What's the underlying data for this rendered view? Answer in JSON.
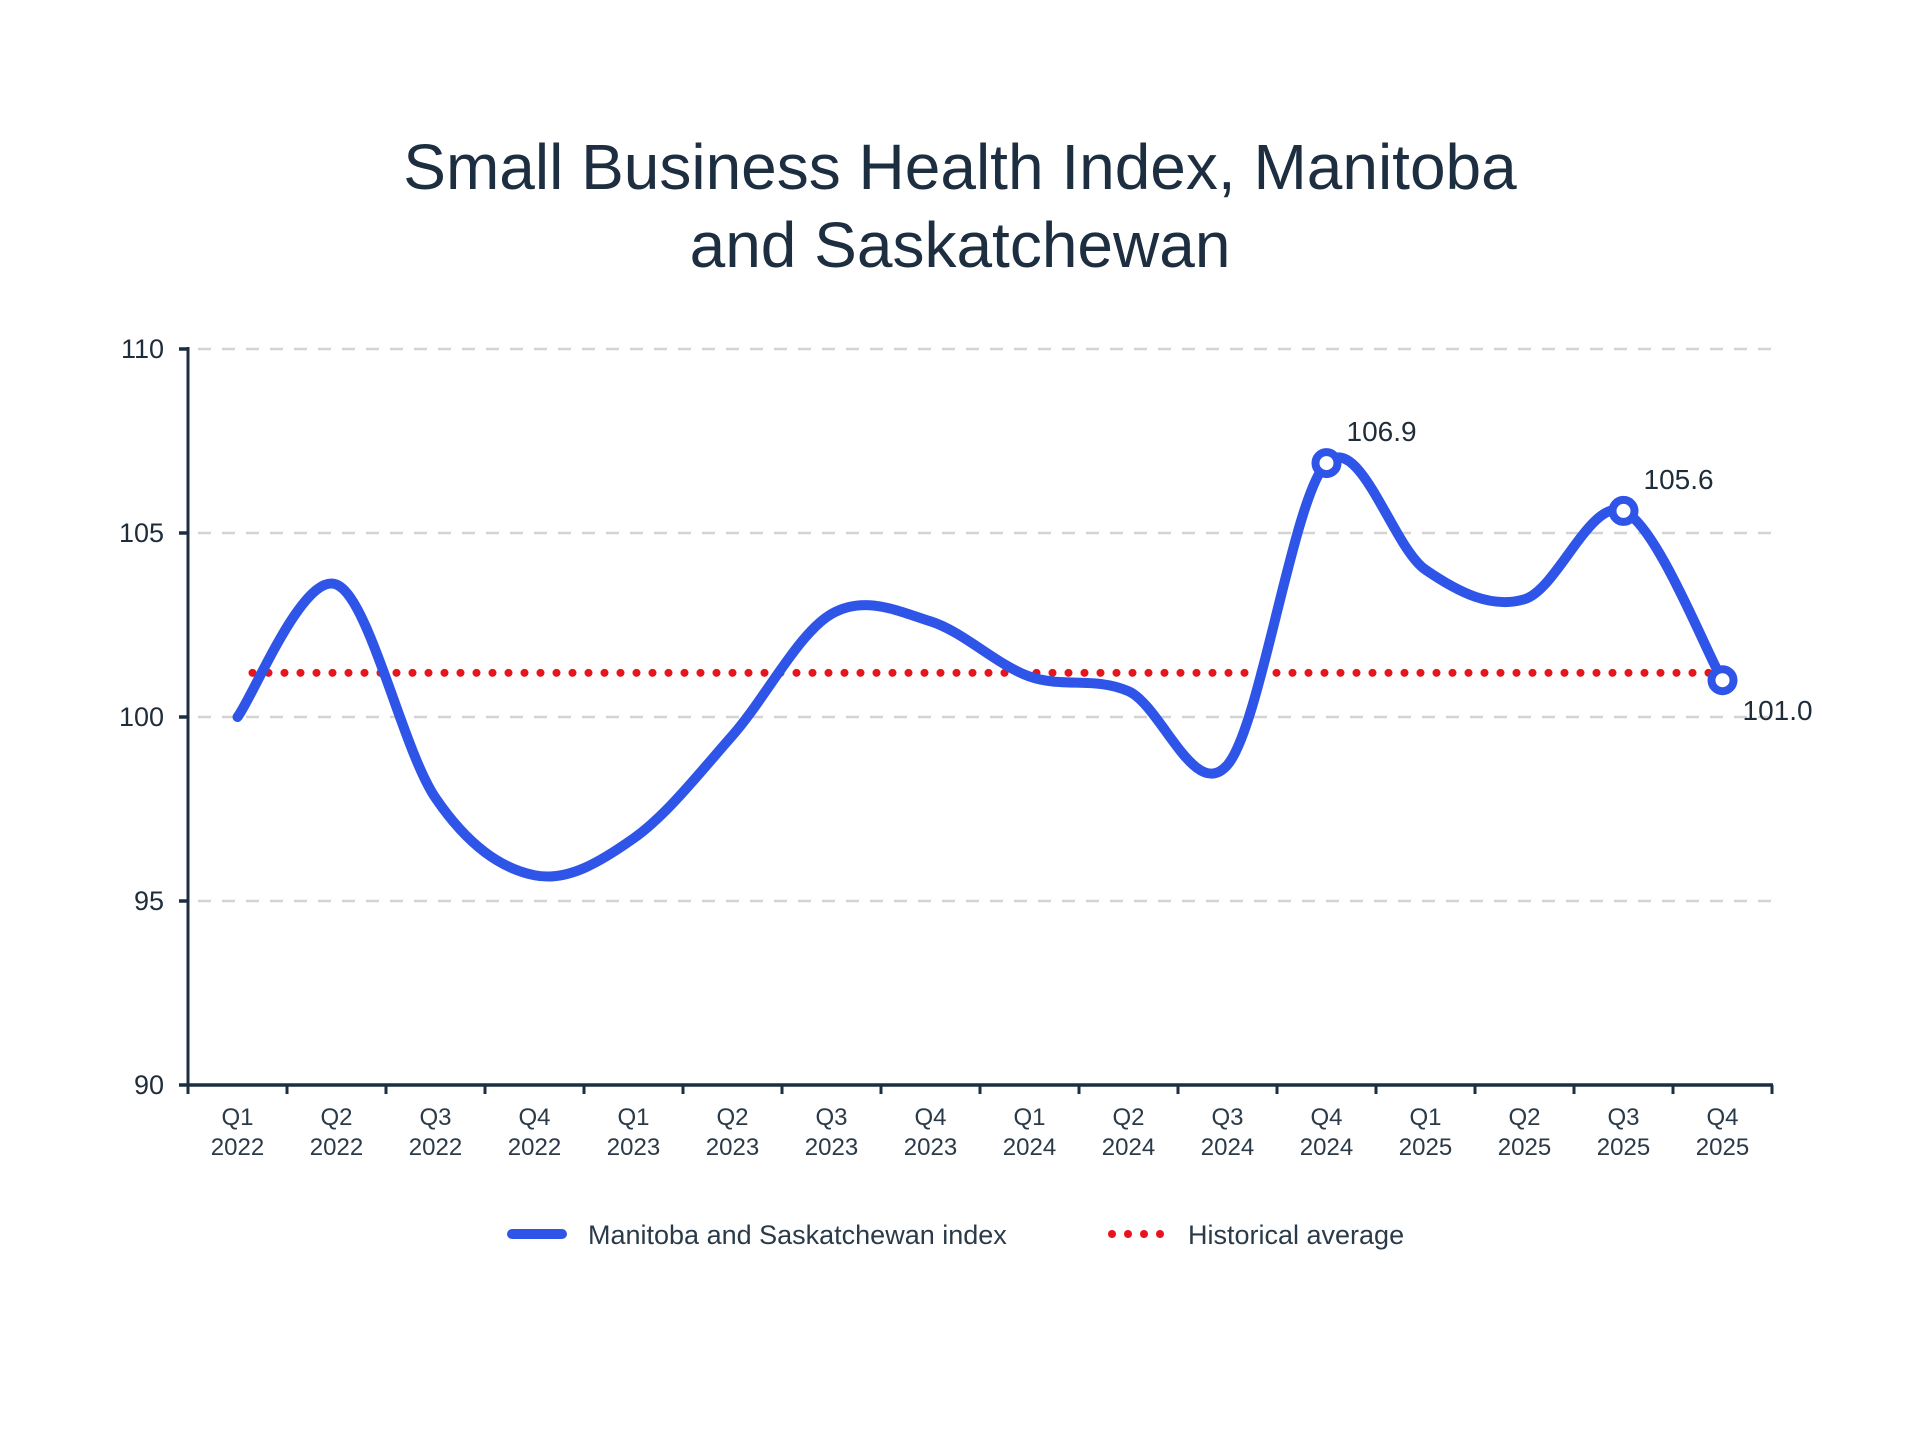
{
  "chart_data": {
    "type": "line",
    "title": [
      "Small Business Health Index, Manitoba",
      "and Saskatchewan"
    ],
    "xlabel": "",
    "ylabel": "",
    "ylim": [
      90,
      110
    ],
    "yticks": [
      "90",
      "95",
      "100",
      "105",
      "110"
    ],
    "ytick_values": [
      90,
      95,
      100,
      105,
      110
    ],
    "grid": "horizontal-dashed",
    "categories": [
      [
        "Q1",
        "2022"
      ],
      [
        "Q2",
        "2022"
      ],
      [
        "Q3",
        "2022"
      ],
      [
        "Q4",
        "2022"
      ],
      [
        "Q1",
        "2023"
      ],
      [
        "Q2",
        "2023"
      ],
      [
        "Q3",
        "2023"
      ],
      [
        "Q4",
        "2023"
      ],
      [
        "Q1",
        "2024"
      ],
      [
        "Q2",
        "2024"
      ],
      [
        "Q3",
        "2024"
      ],
      [
        "Q4",
        "2024"
      ],
      [
        "Q1",
        "2025"
      ],
      [
        "Q2",
        "2025"
      ],
      [
        "Q3",
        "2025"
      ],
      [
        "Q4",
        "2025"
      ]
    ],
    "series": [
      {
        "name": "Manitoba and Saskatchewan index",
        "color": "#2f55e8",
        "style": "solid-smooth",
        "values": [
          100.0,
          103.6,
          97.8,
          95.7,
          96.7,
          99.5,
          102.8,
          102.6,
          101.1,
          100.7,
          98.7,
          106.9,
          104.0,
          103.2,
          105.6,
          101.0
        ]
      },
      {
        "name": "Historical average",
        "color": "#e8141b",
        "style": "dotted",
        "values": [
          101.2,
          101.2,
          101.2,
          101.2,
          101.2,
          101.2,
          101.2,
          101.2,
          101.2,
          101.2,
          101.2,
          101.2,
          101.2,
          101.2,
          101.2,
          101.2
        ]
      }
    ],
    "annotations": [
      {
        "category_index": 11,
        "value": 106.9,
        "label": "106.9",
        "position": "upper-right"
      },
      {
        "category_index": 14,
        "value": 105.6,
        "label": "105.6",
        "position": "upper-right"
      },
      {
        "category_index": 15,
        "value": 101.0,
        "label": "101.0",
        "position": "lower-right"
      }
    ],
    "legend": {
      "placement": "bottom-center",
      "entries": [
        "Manitoba and Saskatchewan index",
        "Historical average"
      ]
    },
    "colors": {
      "title": "#1c2e40",
      "axis": "#1c2e40",
      "grid": "#d4d4d4",
      "text": "#2a3a48"
    }
  }
}
